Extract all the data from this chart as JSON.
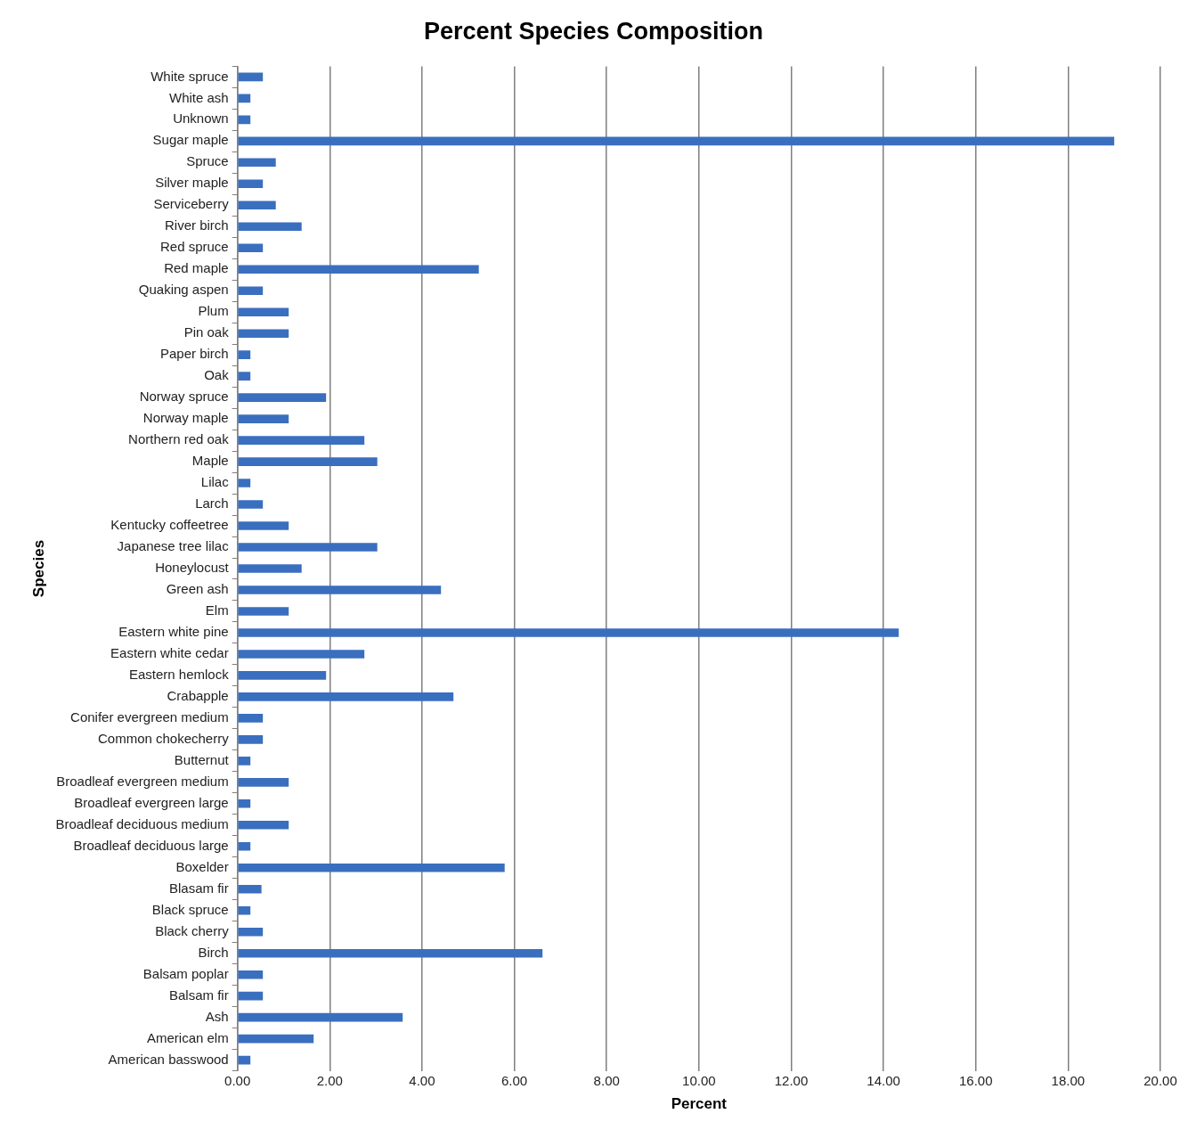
{
  "chart_data": {
    "type": "bar",
    "orientation": "horizontal",
    "title": "Percent Species Composition",
    "xlabel": "Percent",
    "ylabel": "Species",
    "categories": [
      "White spruce",
      "White ash",
      "Unknown",
      "Sugar maple",
      "Spruce",
      "Silver maple",
      "Serviceberry",
      "River birch",
      "Red spruce",
      "Red maple",
      "Quaking aspen",
      "Plum",
      "Pin oak",
      "Paper birch",
      "Oak",
      "Norway spruce",
      "Norway maple",
      "Northern red oak",
      "Maple",
      "Lilac",
      "Larch",
      "Kentucky coffeetree",
      "Japanese tree lilac",
      "Honeylocust",
      "Green ash",
      "Elm",
      "Eastern white pine",
      "Eastern white cedar",
      "Eastern hemlock",
      "Crabapple",
      "Conifer evergreen medium",
      "Common chokecherry",
      "Butternut",
      "Broadleaf evergreen medium",
      "Broadleaf evergreen large",
      "Broadleaf deciduous medium",
      "Broadleaf deciduous large",
      "Boxelder",
      "Blasam fir",
      "Black spruce",
      "Black cherry",
      "Birch",
      "Balsam poplar",
      "Balsam fir",
      "Ash",
      "American elm",
      "American basswood"
    ],
    "values": [
      0.55,
      0.28,
      0.28,
      19.0,
      0.83,
      0.55,
      0.83,
      1.39,
      0.55,
      5.23,
      0.55,
      1.11,
      1.11,
      0.28,
      0.28,
      1.92,
      1.11,
      2.75,
      3.03,
      0.28,
      0.55,
      1.11,
      3.03,
      1.39,
      4.41,
      1.11,
      14.33,
      2.75,
      1.92,
      4.68,
      0.55,
      0.55,
      0.28,
      1.11,
      0.28,
      1.11,
      0.28,
      5.79,
      0.52,
      0.28,
      0.55,
      6.61,
      0.55,
      0.55,
      3.58,
      1.65,
      0.28
    ],
    "color": "#3a6fbf",
    "xlim": [
      0,
      20
    ],
    "xticks": [
      {
        "value": 0,
        "label": "0.00"
      },
      {
        "value": 2,
        "label": "2.00"
      },
      {
        "value": 4,
        "label": "4.00"
      },
      {
        "value": 6,
        "label": "6.00"
      },
      {
        "value": 8,
        "label": "8.00"
      },
      {
        "value": 10,
        "label": "10.00"
      },
      {
        "value": 12,
        "label": "12.00"
      },
      {
        "value": 14,
        "label": "14.00"
      },
      {
        "value": 16,
        "label": "16.00"
      },
      {
        "value": 18,
        "label": "18.00"
      },
      {
        "value": 20,
        "label": "20.00"
      }
    ],
    "grid": "x",
    "legend": false
  }
}
